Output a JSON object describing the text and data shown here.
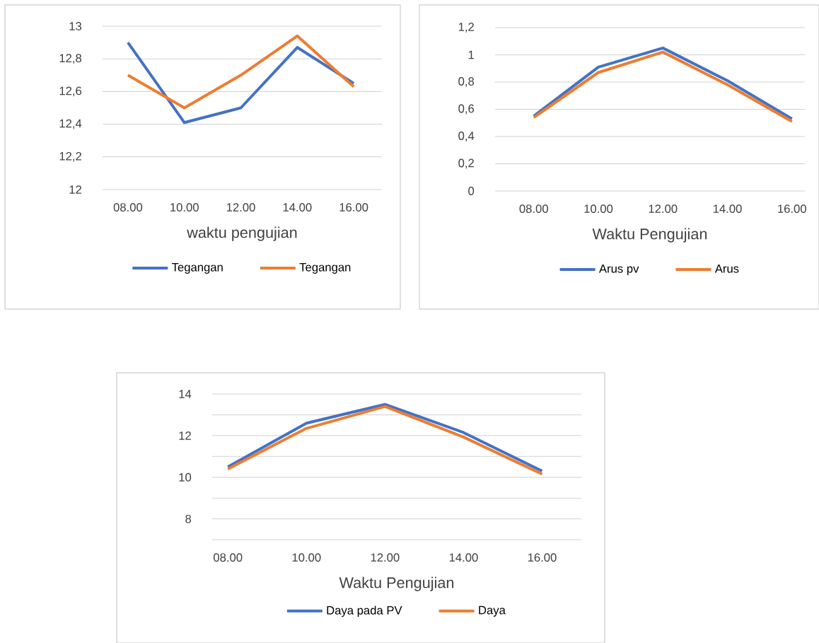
{
  "chart_data": [
    {
      "type": "line",
      "xlabel": "waktu pengujian",
      "categories": [
        "08.00",
        "10.00",
        "12.00",
        "14.00",
        "16.00"
      ],
      "series": [
        {
          "name": "Tegangan",
          "color": "#4472c4",
          "values": [
            12.9,
            12.41,
            12.5,
            12.87,
            12.65
          ]
        },
        {
          "name": "Tegangan",
          "color": "#ed7d31",
          "values": [
            12.7,
            12.5,
            12.7,
            12.94,
            12.63
          ]
        }
      ],
      "ylim": [
        12,
        13
      ],
      "yticks": [
        {
          "value": 12,
          "label": "12"
        },
        {
          "value": 12.2,
          "label": "12,2"
        },
        {
          "value": 12.4,
          "label": "12,4"
        },
        {
          "value": 12.6,
          "label": "12,6"
        },
        {
          "value": 12.8,
          "label": "12,8"
        },
        {
          "value": 13,
          "label": "13"
        }
      ],
      "grid": "y",
      "legend": "bottom"
    },
    {
      "type": "line",
      "xlabel": "Waktu Pengujian",
      "categories": [
        "08.00",
        "10.00",
        "12.00",
        "14.00",
        "16.00"
      ],
      "series": [
        {
          "name": "Arus pv",
          "color": "#4472c4",
          "values": [
            0.55,
            0.91,
            1.05,
            0.81,
            0.53
          ]
        },
        {
          "name": "Arus",
          "color": "#ed7d31",
          "values": [
            0.54,
            0.87,
            1.02,
            0.78,
            0.51
          ]
        }
      ],
      "ylim": [
        0,
        1.2
      ],
      "yticks": [
        {
          "value": 0,
          "label": "0"
        },
        {
          "value": 0.2,
          "label": "0,2"
        },
        {
          "value": 0.4,
          "label": "0,4"
        },
        {
          "value": 0.6,
          "label": "0,6"
        },
        {
          "value": 0.8,
          "label": "0,8"
        },
        {
          "value": 1,
          "label": "1"
        },
        {
          "value": 1.2,
          "label": "1,2"
        }
      ],
      "grid": "y",
      "legend": "bottom"
    },
    {
      "type": "line",
      "xlabel": "Waktu Pengujian",
      "categories": [
        "08.00",
        "10.00",
        "12.00",
        "14.00",
        "16.00"
      ],
      "series": [
        {
          "name": "Daya pada PV",
          "color": "#4472c4",
          "values": [
            10.5,
            12.6,
            13.5,
            12.15,
            10.3
          ]
        },
        {
          "name": "Daya",
          "color": "#ed7d31",
          "values": [
            10.4,
            12.35,
            13.4,
            11.93,
            10.15
          ]
        }
      ],
      "ylim": [
        7,
        14
      ],
      "yticks": [
        {
          "value": 7,
          "label": null
        },
        8,
        {
          "value": 9,
          "label": null
        },
        10,
        {
          "value": 11,
          "label": null
        },
        12,
        {
          "value": 13,
          "label": null
        },
        14
      ],
      "grid": "y",
      "legend": "bottom"
    }
  ]
}
